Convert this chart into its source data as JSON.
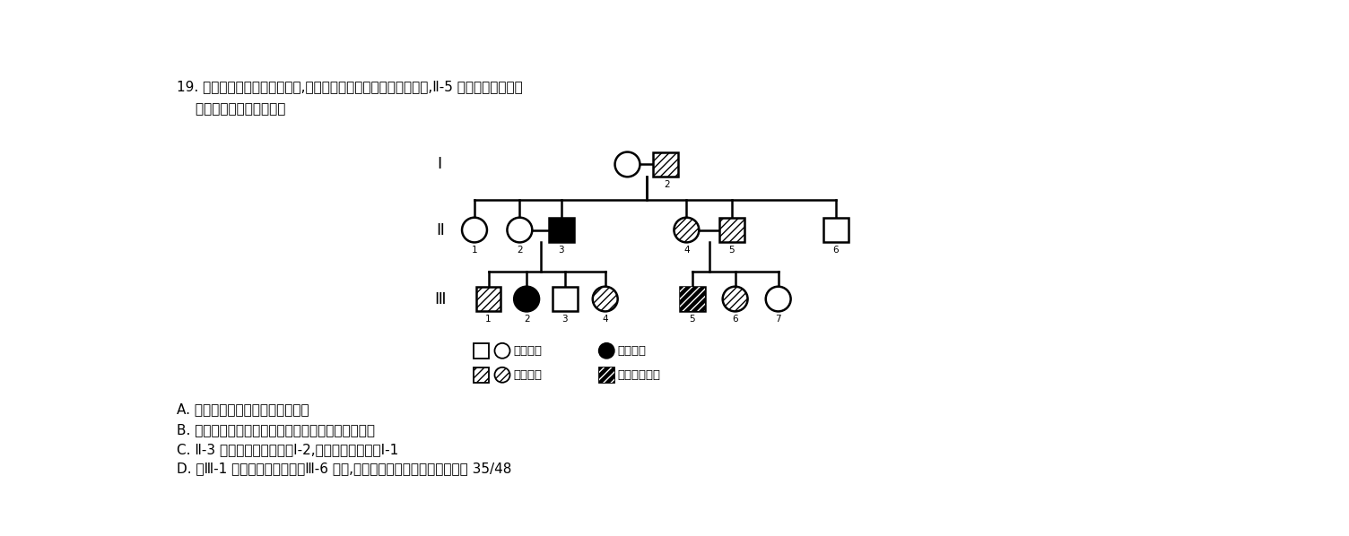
{
  "title_line1": "19. 如图是某家族的遗传系谱图,其中甲病和乙病均为单基因遗传病,Ⅱ-5 不带有乙病的致病",
  "title_line2": "    基因。下列叙述错误的是",
  "gen_labels": [
    "I",
    "Ⅱ",
    "Ⅲ"
  ],
  "options": [
    "A. 乙病在男性中的发病率高于女性",
    "B. 禁止近亲结婚不能有效降低甲病在人群中的发病率",
    "C. Ⅱ-3 甲病的致病基因来自Ⅰ-2,乙病致病基因来自Ⅰ-1",
    "D. 与Ⅲ-1 基因型相同的男性与Ⅲ-6 婚配,后代既患甲病又患乙病的概率为 35/48"
  ],
  "legend_row1_left": "□○正常男女",
  "legend_row1_right": "●乙病男女",
  "legend_row2_left": "▩◔甲病男女",
  "legend_row2_right": "▨患两种病男性",
  "background": "#ffffff"
}
